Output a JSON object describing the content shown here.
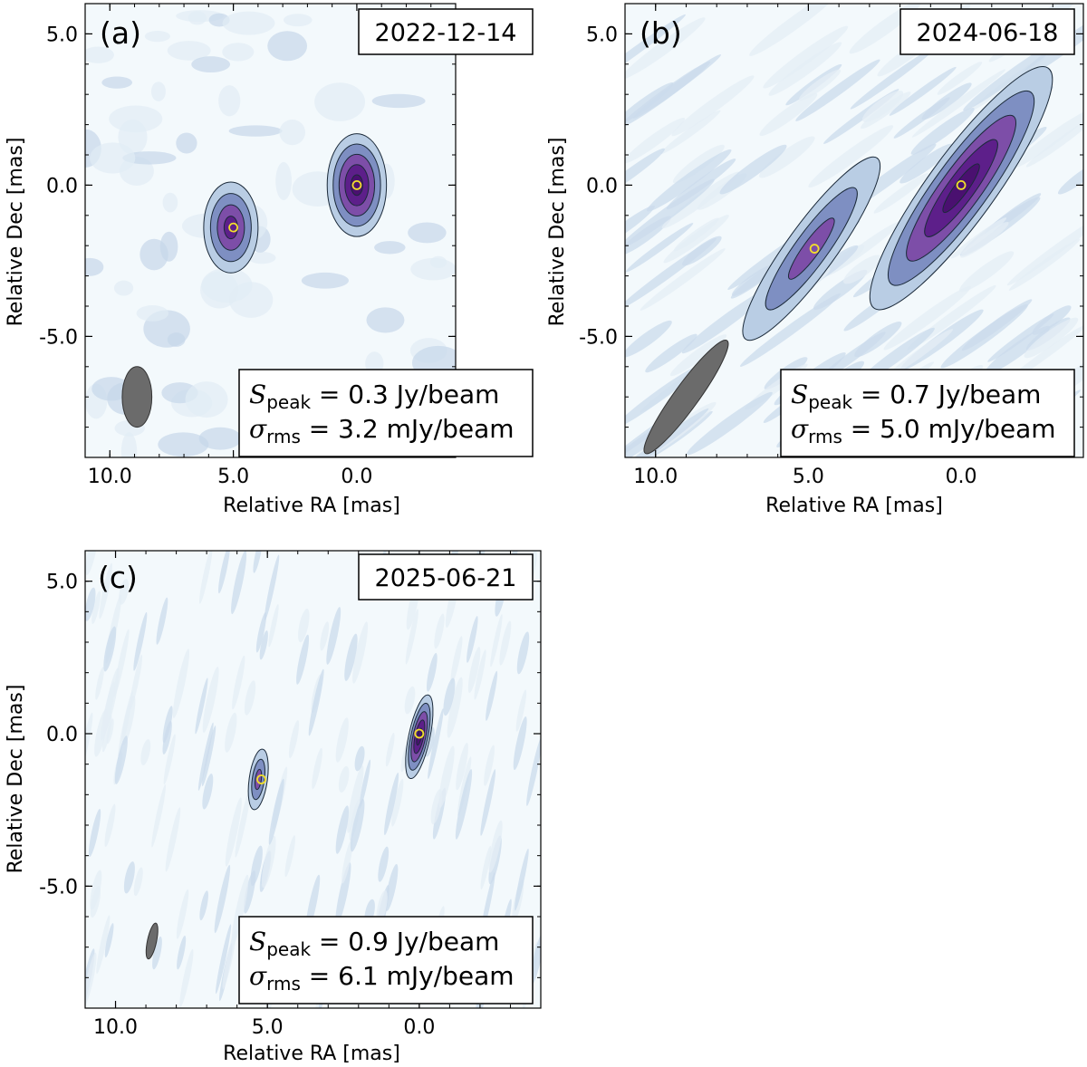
{
  "chart_data": [
    {
      "type": "contour",
      "panel_label": "(a)",
      "date": "2022-12-14",
      "xlabel": "Relative RA [mas]",
      "ylabel": "Relative Dec [mas]",
      "xlim": [
        11.0,
        -4.0
      ],
      "ylim": [
        -9.0,
        6.0
      ],
      "xticks": [
        {
          "value": 10.0,
          "label": "10.0"
        },
        {
          "value": 5.0,
          "label": "5.0"
        },
        {
          "value": 0.0,
          "label": "0.0"
        }
      ],
      "yticks": [
        {
          "value": 5.0,
          "label": "5.0"
        },
        {
          "value": 0.0,
          "label": "0.0"
        },
        {
          "value": -5.0,
          "label": "-5.0"
        }
      ],
      "stats": {
        "s_symbol": "S",
        "s_sub": "peak",
        "s_value": "0.3 Jy/beam",
        "sigma_symbol": "σ",
        "sigma_sub": "rms",
        "sigma_value": "3.2 mJy/beam"
      },
      "beam": {
        "ra": 8.9,
        "dec": -7.0,
        "major_mas": 1.0,
        "minor_mas": 0.6,
        "pa_deg": 0
      },
      "components": [
        {
          "ra": 0.0,
          "dec": 0.0,
          "major_mas": 1.7,
          "minor_mas": 1.2,
          "pa_deg": 0,
          "levels": 5
        },
        {
          "ra": 5.1,
          "dec": -1.4,
          "major_mas": 1.5,
          "minor_mas": 1.1,
          "pa_deg": 0,
          "levels": 4
        }
      ],
      "markers": [
        {
          "ra": 0.0,
          "dec": 0.0
        },
        {
          "ra": 5.0,
          "dec": -1.4
        }
      ]
    },
    {
      "type": "contour",
      "panel_label": "(b)",
      "date": "2024-06-18",
      "xlabel": "Relative RA [mas]",
      "ylabel": "Relative Dec [mas]",
      "xlim": [
        11.0,
        -4.0
      ],
      "ylim": [
        -9.0,
        6.0
      ],
      "xticks": [
        {
          "value": 10.0,
          "label": "10.0"
        },
        {
          "value": 5.0,
          "label": "5.0"
        },
        {
          "value": 0.0,
          "label": "0.0"
        }
      ],
      "yticks": [
        {
          "value": 5.0,
          "label": "5.0"
        },
        {
          "value": 0.0,
          "label": "0.0"
        },
        {
          "value": -5.0,
          "label": "-5.0"
        }
      ],
      "stats": {
        "s_symbol": "S",
        "s_sub": "peak",
        "s_value": "0.7 Jy/beam",
        "sigma_symbol": "σ",
        "sigma_sub": "rms",
        "sigma_value": "5.0 mJy/beam"
      },
      "beam": {
        "ra": 9.0,
        "dec": -7.0,
        "major_mas": 2.3,
        "minor_mas": 0.4,
        "pa_deg": 36
      },
      "components": [
        {
          "ra": 0.0,
          "dec": -0.1,
          "major_mas": 4.9,
          "minor_mas": 1.1,
          "pa_deg": 36,
          "levels": 5
        },
        {
          "ra": 4.9,
          "dec": -2.1,
          "major_mas": 3.7,
          "minor_mas": 0.8,
          "pa_deg": 36,
          "levels": 3
        }
      ],
      "markers": [
        {
          "ra": 0.0,
          "dec": 0.0
        },
        {
          "ra": 4.8,
          "dec": -2.1
        }
      ]
    },
    {
      "type": "contour",
      "panel_label": "(c)",
      "date": "2025-06-21",
      "xlabel": "Relative RA [mas]",
      "ylabel": "Relative Dec [mas]",
      "xlim": [
        11.0,
        -4.0
      ],
      "ylim": [
        -9.0,
        6.0
      ],
      "xticks": [
        {
          "value": 10.0,
          "label": "10.0"
        },
        {
          "value": 5.0,
          "label": "5.0"
        },
        {
          "value": 0.0,
          "label": "0.0"
        }
      ],
      "yticks": [
        {
          "value": 5.0,
          "label": "5.0"
        },
        {
          "value": 0.0,
          "label": "0.0"
        },
        {
          "value": -5.0,
          "label": "-5.0"
        }
      ],
      "stats": {
        "s_symbol": "S",
        "s_sub": "peak",
        "s_value": "0.9 Jy/beam",
        "sigma_symbol": "σ",
        "sigma_sub": "rms",
        "sigma_value": "6.1 mJy/beam"
      },
      "beam": {
        "ra": 8.8,
        "dec": -6.8,
        "major_mas": 0.6,
        "minor_mas": 0.15,
        "pa_deg": 12
      },
      "components": [
        {
          "ra": 0.0,
          "dec": -0.1,
          "major_mas": 1.4,
          "minor_mas": 0.35,
          "pa_deg": 12,
          "levels": 5
        },
        {
          "ra": 5.3,
          "dec": -1.5,
          "major_mas": 1.0,
          "minor_mas": 0.3,
          "pa_deg": 8,
          "levels": 3
        }
      ],
      "markers": [
        {
          "ra": 0.0,
          "dec": 0.0
        },
        {
          "ra": 5.2,
          "dec": -1.5
        }
      ]
    }
  ]
}
